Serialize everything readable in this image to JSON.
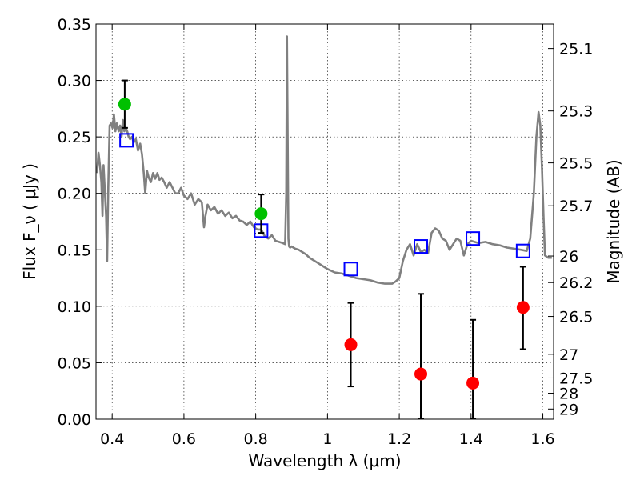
{
  "chart_data": {
    "type": "scatter",
    "xlabel": "Wavelength  λ (μm)",
    "ylabel": "Flux  F_ν  ( μJy )",
    "ylabel_right": "Magnitude (AB)",
    "xlim": [
      0.355,
      1.63
    ],
    "ylim": [
      0.0,
      0.35
    ],
    "grid": true,
    "x_ticks": [
      {
        "value": 0.4,
        "label": "0.4"
      },
      {
        "value": 0.6,
        "label": "0.6"
      },
      {
        "value": 0.8,
        "label": "0.8"
      },
      {
        "value": 1.0,
        "label": "1"
      },
      {
        "value": 1.2,
        "label": "1.2"
      },
      {
        "value": 1.4,
        "label": "1.4"
      },
      {
        "value": 1.6,
        "label": "1.6"
      }
    ],
    "y_ticks": [
      {
        "value": 0.0,
        "label": "0.00"
      },
      {
        "value": 0.05,
        "label": "0.05"
      },
      {
        "value": 0.1,
        "label": "0.10"
      },
      {
        "value": 0.15,
        "label": "0.15"
      },
      {
        "value": 0.2,
        "label": "0.20"
      },
      {
        "value": 0.25,
        "label": "0.25"
      },
      {
        "value": 0.3,
        "label": "0.30"
      },
      {
        "value": 0.35,
        "label": "0.35"
      }
    ],
    "mag_ticks": [
      {
        "flux": 0.3283,
        "label": "25.1"
      },
      {
        "flux": 0.273,
        "label": "25.3"
      },
      {
        "flux": 0.227,
        "label": "25.5"
      },
      {
        "flux": 0.189,
        "label": "25.7"
      },
      {
        "flux": 0.1445,
        "label": "26"
      },
      {
        "flux": 0.121,
        "label": "26.2"
      },
      {
        "flux": 0.091,
        "label": "26.5"
      },
      {
        "flux": 0.0575,
        "label": "27"
      },
      {
        "flux": 0.0365,
        "label": "27.5"
      },
      {
        "flux": 0.023,
        "label": "28"
      },
      {
        "flux": 0.009,
        "label": "29"
      }
    ],
    "series": [
      {
        "type": "line",
        "color": "#808080",
        "x": [
          0.358,
          0.362,
          0.366,
          0.37,
          0.373,
          0.376,
          0.38,
          0.383,
          0.386,
          0.389,
          0.393,
          0.397,
          0.401,
          0.405,
          0.409,
          0.413,
          0.418,
          0.422,
          0.426,
          0.43,
          0.434,
          0.438,
          0.442,
          0.446,
          0.45,
          0.455,
          0.46,
          0.466,
          0.472,
          0.478,
          0.483,
          0.488,
          0.492,
          0.497,
          0.502,
          0.508,
          0.514,
          0.52,
          0.526,
          0.532,
          0.538,
          0.545,
          0.552,
          0.56,
          0.568,
          0.576,
          0.584,
          0.592,
          0.6,
          0.61,
          0.62,
          0.63,
          0.64,
          0.65,
          0.656,
          0.66,
          0.666,
          0.675,
          0.685,
          0.695,
          0.705,
          0.715,
          0.725,
          0.735,
          0.745,
          0.755,
          0.765,
          0.775,
          0.785,
          0.795,
          0.805,
          0.815,
          0.825,
          0.835,
          0.845,
          0.855,
          0.865,
          0.875,
          0.882,
          0.885,
          0.887,
          0.889,
          0.891,
          0.893,
          0.896,
          0.9,
          0.91,
          0.92,
          0.93,
          0.94,
          0.95,
          0.96,
          0.97,
          0.98,
          0.99,
          1.0,
          1.02,
          1.04,
          1.06,
          1.08,
          1.1,
          1.12,
          1.14,
          1.16,
          1.18,
          1.19,
          1.2,
          1.21,
          1.22,
          1.23,
          1.24,
          1.25,
          1.26,
          1.27,
          1.28,
          1.29,
          1.3,
          1.31,
          1.32,
          1.33,
          1.34,
          1.35,
          1.36,
          1.37,
          1.38,
          1.39,
          1.4,
          1.42,
          1.44,
          1.46,
          1.48,
          1.5,
          1.52,
          1.54,
          1.555,
          1.565,
          1.575,
          1.582,
          1.588,
          1.593,
          1.598,
          1.602,
          1.606,
          1.615,
          1.625
        ],
        "y": [
          0.218,
          0.236,
          0.225,
          0.21,
          0.18,
          0.225,
          0.2,
          0.18,
          0.14,
          0.205,
          0.26,
          0.262,
          0.258,
          0.27,
          0.255,
          0.262,
          0.255,
          0.26,
          0.25,
          0.265,
          0.255,
          0.258,
          0.255,
          0.25,
          0.248,
          0.25,
          0.245,
          0.248,
          0.238,
          0.244,
          0.235,
          0.218,
          0.2,
          0.22,
          0.214,
          0.21,
          0.218,
          0.213,
          0.218,
          0.212,
          0.214,
          0.21,
          0.205,
          0.21,
          0.205,
          0.2,
          0.2,
          0.205,
          0.198,
          0.195,
          0.2,
          0.19,
          0.195,
          0.192,
          0.17,
          0.18,
          0.19,
          0.185,
          0.188,
          0.182,
          0.185,
          0.18,
          0.183,
          0.178,
          0.18,
          0.176,
          0.175,
          0.172,
          0.175,
          0.17,
          0.168,
          0.168,
          0.162,
          0.16,
          0.163,
          0.158,
          0.157,
          0.156,
          0.155,
          0.2,
          0.339,
          0.25,
          0.16,
          0.153,
          0.152,
          0.153,
          0.151,
          0.15,
          0.148,
          0.146,
          0.143,
          0.141,
          0.139,
          0.137,
          0.135,
          0.133,
          0.13,
          0.129,
          0.127,
          0.125,
          0.124,
          0.123,
          0.121,
          0.12,
          0.12,
          0.122,
          0.125,
          0.14,
          0.15,
          0.155,
          0.145,
          0.155,
          0.148,
          0.15,
          0.147,
          0.165,
          0.169,
          0.167,
          0.16,
          0.158,
          0.15,
          0.155,
          0.16,
          0.158,
          0.145,
          0.155,
          0.158,
          0.156,
          0.157,
          0.155,
          0.154,
          0.152,
          0.151,
          0.15,
          0.149,
          0.16,
          0.2,
          0.25,
          0.272,
          0.26,
          0.22,
          0.18,
          0.145,
          0.143,
          0.143
        ]
      },
      {
        "name": "",
        "marker": "square",
        "color": "#0000ff",
        "x": [
          0.44,
          0.815,
          1.065,
          1.26,
          1.405,
          1.545
        ],
        "y": [
          0.247,
          0.167,
          0.133,
          0.153,
          0.16,
          0.149
        ]
      },
      {
        "name": "",
        "marker": "circle",
        "color": "#00c000",
        "x": [
          0.435,
          0.815
        ],
        "y": [
          0.279,
          0.182
        ],
        "err_lo": [
          0.258,
          0.165
        ],
        "err_hi": [
          0.3,
          0.199
        ]
      },
      {
        "name": "",
        "marker": "circle",
        "color": "#ff0000",
        "x": [
          1.065,
          1.26,
          1.405,
          1.545
        ],
        "y": [
          0.066,
          0.04,
          0.032,
          0.099
        ],
        "err_lo": [
          0.029,
          0.0,
          0.0,
          0.062
        ],
        "err_hi": [
          0.103,
          0.111,
          0.088,
          0.135
        ]
      }
    ]
  }
}
